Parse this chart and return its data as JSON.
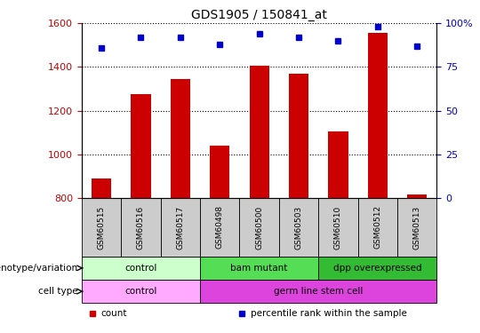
{
  "title": "GDS1905 / 150841_at",
  "samples": [
    "GSM60515",
    "GSM60516",
    "GSM60517",
    "GSM60498",
    "GSM60500",
    "GSM60503",
    "GSM60510",
    "GSM60512",
    "GSM60513"
  ],
  "counts": [
    890,
    1275,
    1345,
    1040,
    1405,
    1370,
    1105,
    1555,
    815
  ],
  "percentiles": [
    86,
    92,
    92,
    88,
    94,
    92,
    90,
    98,
    87
  ],
  "ylim_left": [
    800,
    1600
  ],
  "ylim_right": [
    0,
    100
  ],
  "yticks_left": [
    800,
    1000,
    1200,
    1400,
    1600
  ],
  "yticks_right": [
    0,
    25,
    50,
    75,
    100
  ],
  "bar_color": "#cc0000",
  "dot_color": "#0000cc",
  "genotype_groups": [
    {
      "label": "control",
      "start": 0,
      "end": 3,
      "color": "#ccffcc"
    },
    {
      "label": "bam mutant",
      "start": 3,
      "end": 6,
      "color": "#55dd55"
    },
    {
      "label": "dpp overexpressed",
      "start": 6,
      "end": 9,
      "color": "#33bb33"
    }
  ],
  "celltype_groups": [
    {
      "label": "control",
      "start": 0,
      "end": 3,
      "color": "#ffaaff"
    },
    {
      "label": "germ line stem cell",
      "start": 3,
      "end": 9,
      "color": "#dd44dd"
    }
  ],
  "row_labels": [
    "genotype/variation",
    "cell type"
  ],
  "legend_items": [
    {
      "color": "#cc0000",
      "label": "count"
    },
    {
      "color": "#0000cc",
      "label": "percentile rank within the sample"
    }
  ],
  "sample_box_color": "#cccccc",
  "bg_color": "#ffffff"
}
